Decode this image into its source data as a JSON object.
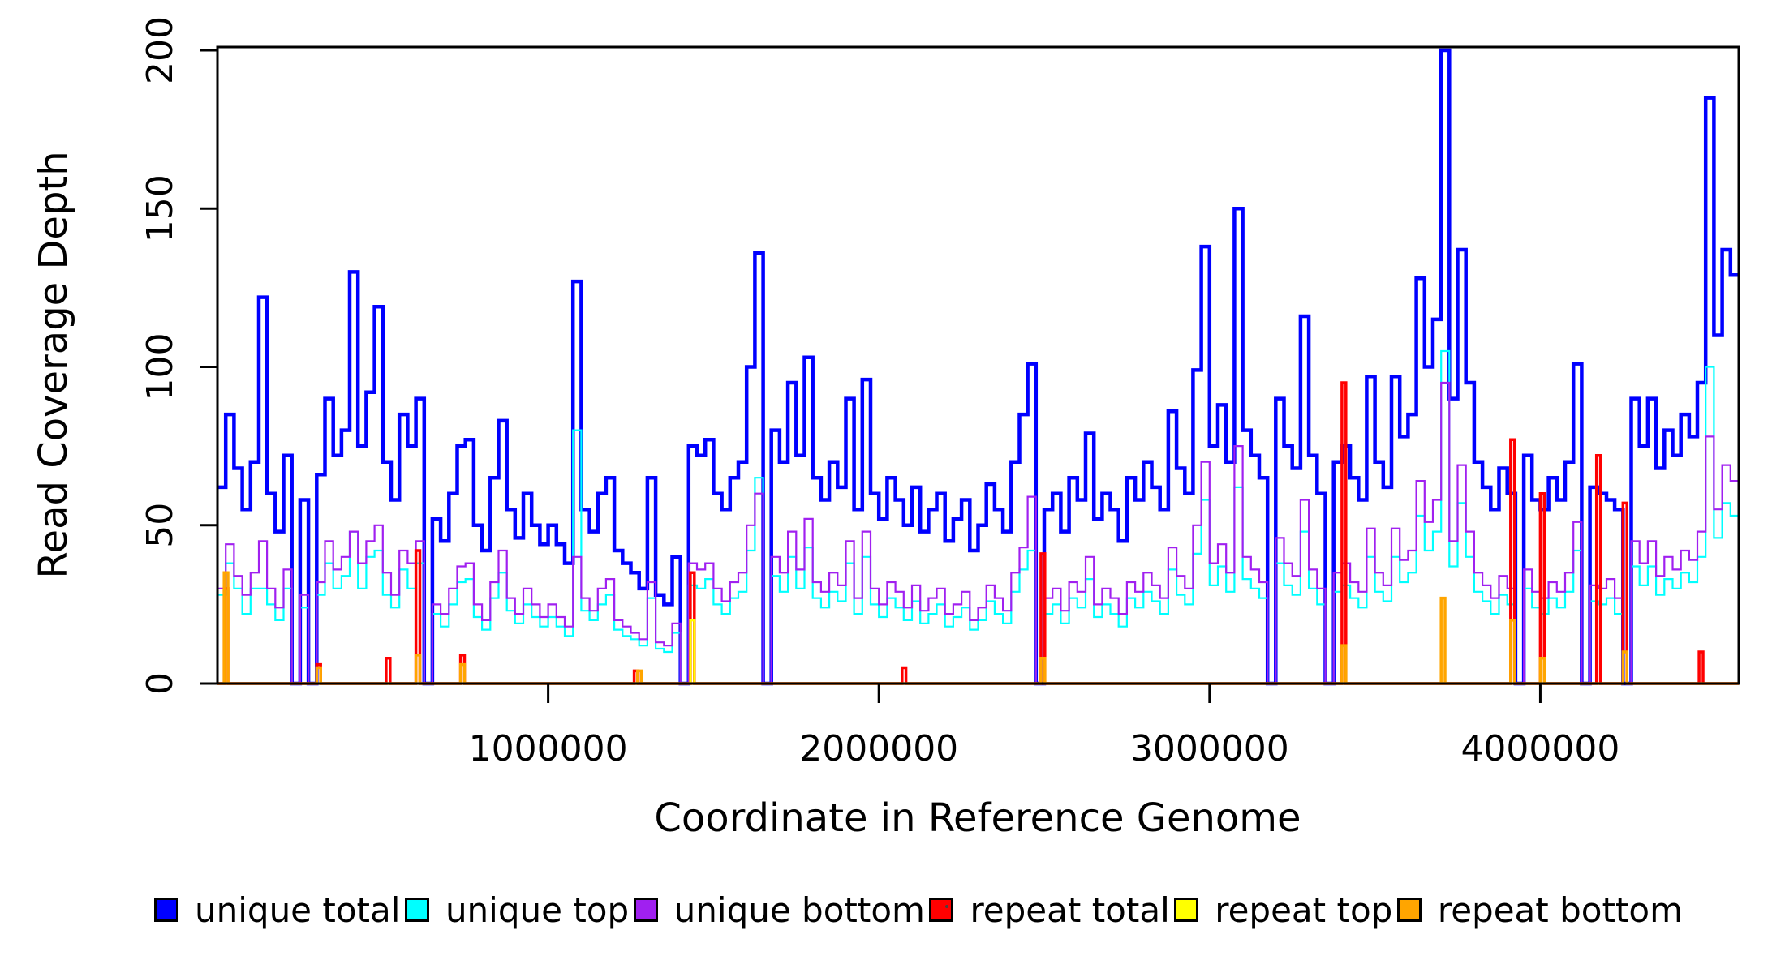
{
  "figure": {
    "background": "#ffffff",
    "box_color": "#000000",
    "y_axis": {
      "label": "Read Coverage Depth",
      "tick_labels": [
        "0",
        "50",
        "100",
        "150",
        "200"
      ],
      "tick_values": [
        0,
        50,
        100,
        150,
        200
      ]
    },
    "x_axis": {
      "label": "Coordinate in Reference Genome",
      "tick_labels": [
        "1000000",
        "2000000",
        "3000000",
        "4000000"
      ],
      "tick_values": [
        1000000,
        2000000,
        3000000,
        4000000
      ]
    },
    "legend": [
      {
        "label": "unique total",
        "color": "#0000FF"
      },
      {
        "label": "unique top",
        "color": "#00FFFF"
      },
      {
        "label": "unique bottom",
        "color": "#A020F0"
      },
      {
        "label": "repeat total",
        "color": "#FF0000"
      },
      {
        "label": "repeat top",
        "color": "#FFFF00"
      },
      {
        "label": "repeat bottom",
        "color": "#FFA500"
      }
    ]
  },
  "chart_data": {
    "type": "line",
    "subtype": "step",
    "title": "",
    "xlabel": "Coordinate in Reference Genome",
    "ylabel": "Read Coverage Depth",
    "xlim": [
      0,
      4600000
    ],
    "ylim": [
      0,
      200
    ],
    "x_tick_values": [
      1000000,
      2000000,
      3000000,
      4000000
    ],
    "y_tick_values": [
      0,
      50,
      100,
      150,
      200
    ],
    "grid": false,
    "legend_position": "bottom",
    "x_step": 25000,
    "spike_width": 12000,
    "series": [
      {
        "name": "unique total",
        "color": "#0000FF",
        "line_width": 4.5,
        "kind": "full",
        "values": [
          62,
          85,
          68,
          55,
          70,
          122,
          60,
          48,
          72,
          0,
          58,
          0,
          66,
          90,
          72,
          80,
          130,
          75,
          92,
          119,
          70,
          58,
          85,
          75,
          90,
          0,
          52,
          45,
          60,
          75,
          77,
          50,
          42,
          65,
          83,
          55,
          46,
          60,
          50,
          44,
          50,
          44,
          38,
          127,
          55,
          48,
          60,
          65,
          42,
          38,
          35,
          30,
          65,
          28,
          25,
          40,
          0,
          75,
          72,
          77,
          60,
          55,
          65,
          70,
          100,
          136,
          0,
          80,
          70,
          95,
          72,
          103,
          65,
          58,
          70,
          62,
          90,
          55,
          96,
          60,
          52,
          65,
          58,
          50,
          62,
          48,
          55,
          60,
          45,
          52,
          58,
          42,
          50,
          63,
          55,
          48,
          70,
          85,
          101,
          0,
          55,
          60,
          48,
          65,
          58,
          79,
          52,
          60,
          55,
          45,
          65,
          58,
          70,
          62,
          55,
          86,
          68,
          60,
          99,
          138,
          75,
          88,
          70,
          150,
          80,
          72,
          65,
          0,
          90,
          75,
          68,
          116,
          72,
          60,
          0,
          70,
          75,
          65,
          58,
          97,
          70,
          62,
          97,
          78,
          85,
          128,
          100,
          115,
          200,
          90,
          137,
          95,
          70,
          62,
          55,
          68,
          60,
          0,
          72,
          58,
          55,
          65,
          58,
          70,
          101,
          0,
          62,
          60,
          58,
          55,
          0,
          90,
          75,
          90,
          68,
          80,
          72,
          85,
          78,
          95,
          185,
          110,
          137,
          129
        ]
      },
      {
        "name": "unique top",
        "color": "#00FFFF",
        "line_width": 2.2,
        "kind": "full",
        "values": [
          28,
          38,
          30,
          22,
          30,
          30,
          25,
          20,
          30,
          0,
          24,
          0,
          28,
          38,
          30,
          34,
          48,
          30,
          40,
          42,
          28,
          24,
          36,
          30,
          38,
          0,
          22,
          18,
          25,
          32,
          33,
          21,
          17,
          27,
          35,
          23,
          19,
          25,
          21,
          18,
          21,
          18,
          15,
          80,
          23,
          20,
          25,
          28,
          17,
          15,
          14,
          12,
          27,
          11,
          10,
          16,
          0,
          31,
          30,
          33,
          25,
          22,
          27,
          29,
          42,
          65,
          0,
          34,
          29,
          40,
          30,
          43,
          27,
          24,
          29,
          26,
          38,
          22,
          40,
          25,
          21,
          27,
          24,
          20,
          26,
          19,
          22,
          25,
          18,
          21,
          24,
          17,
          20,
          26,
          22,
          19,
          29,
          36,
          42,
          0,
          22,
          25,
          19,
          27,
          24,
          33,
          21,
          25,
          22,
          18,
          27,
          24,
          29,
          26,
          22,
          36,
          28,
          25,
          41,
          58,
          31,
          37,
          29,
          62,
          33,
          30,
          27,
          0,
          38,
          31,
          28,
          48,
          30,
          25,
          0,
          29,
          31,
          27,
          24,
          40,
          29,
          26,
          40,
          32,
          35,
          53,
          42,
          48,
          105,
          37,
          57,
          40,
          29,
          26,
          22,
          28,
          25,
          0,
          30,
          24,
          22,
          27,
          24,
          29,
          42,
          0,
          26,
          25,
          27,
          22,
          0,
          37,
          31,
          37,
          28,
          33,
          30,
          35,
          32,
          40,
          100,
          46,
          57,
          53
        ]
      },
      {
        "name": "unique bottom",
        "color": "#A020F0",
        "line_width": 2.2,
        "kind": "full",
        "values": [
          30,
          44,
          34,
          28,
          35,
          45,
          30,
          24,
          36,
          0,
          28,
          0,
          32,
          45,
          36,
          40,
          48,
          38,
          45,
          50,
          35,
          28,
          42,
          38,
          45,
          0,
          25,
          22,
          30,
          37,
          38,
          25,
          20,
          32,
          42,
          27,
          22,
          30,
          25,
          21,
          25,
          21,
          18,
          40,
          27,
          23,
          30,
          33,
          20,
          18,
          16,
          14,
          32,
          13,
          12,
          19,
          0,
          38,
          36,
          38,
          30,
          26,
          32,
          35,
          50,
          60,
          0,
          40,
          35,
          48,
          36,
          52,
          32,
          29,
          35,
          31,
          45,
          27,
          48,
          30,
          25,
          32,
          29,
          24,
          31,
          23,
          27,
          30,
          22,
          25,
          29,
          20,
          24,
          31,
          27,
          23,
          35,
          43,
          59,
          0,
          27,
          30,
          23,
          32,
          29,
          40,
          25,
          30,
          27,
          22,
          32,
          29,
          35,
          31,
          27,
          43,
          34,
          30,
          50,
          70,
          38,
          44,
          35,
          75,
          40,
          36,
          32,
          0,
          46,
          38,
          34,
          58,
          36,
          30,
          0,
          35,
          38,
          32,
          29,
          49,
          35,
          31,
          49,
          39,
          42,
          64,
          51,
          58,
          95,
          45,
          69,
          48,
          35,
          31,
          27,
          34,
          30,
          0,
          36,
          29,
          27,
          32,
          29,
          35,
          51,
          0,
          31,
          30,
          33,
          27,
          0,
          45,
          38,
          45,
          34,
          40,
          36,
          42,
          39,
          48,
          78,
          55,
          69,
          64
        ]
      },
      {
        "name": "repeat total",
        "color": "#FF0000",
        "line_width": 3.5,
        "kind": "spikes",
        "spikes": [
          [
            20000,
            30
          ],
          [
            300000,
            6
          ],
          [
            510000,
            8
          ],
          [
            600000,
            42
          ],
          [
            735000,
            9
          ],
          [
            1260000,
            4
          ],
          [
            1430000,
            35
          ],
          [
            2070000,
            5
          ],
          [
            2490000,
            41
          ],
          [
            3400000,
            95
          ],
          [
            3910000,
            77
          ],
          [
            4000000,
            60
          ],
          [
            4170000,
            72
          ],
          [
            4250000,
            57
          ],
          [
            4480000,
            10
          ]
        ]
      },
      {
        "name": "repeat top",
        "color": "#FFFF00",
        "line_width": 3,
        "kind": "spikes",
        "spikes": [
          [
            1430000,
            20
          ]
        ]
      },
      {
        "name": "repeat bottom",
        "color": "#FFA500",
        "line_width": 3.5,
        "kind": "spikes",
        "spikes": [
          [
            20000,
            35
          ],
          [
            300000,
            5
          ],
          [
            600000,
            9
          ],
          [
            735000,
            6
          ],
          [
            1270000,
            4
          ],
          [
            2490000,
            8
          ],
          [
            3400000,
            12
          ],
          [
            3700000,
            27
          ],
          [
            3910000,
            20
          ],
          [
            4000000,
            8
          ],
          [
            4250000,
            10
          ]
        ]
      }
    ]
  }
}
